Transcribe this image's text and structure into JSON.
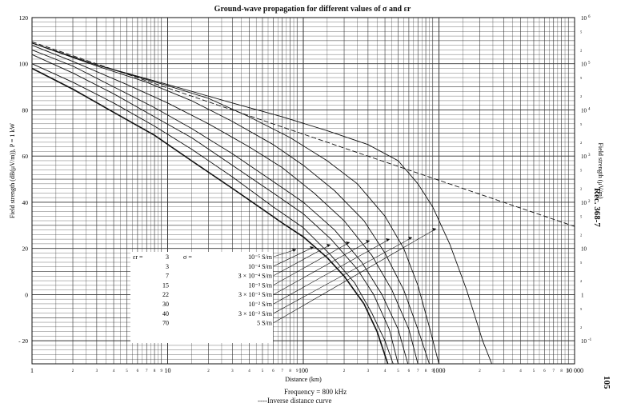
{
  "chart_data": {
    "type": "line",
    "title": "Ground-wave propagation for different values of σ and εr",
    "xlabel": "Distance (km)",
    "ylabel_left": "Field strength (dB(μV/m)), P = 1 kW",
    "ylabel_right": "Field strength (μV/m)",
    "x_scale": "log",
    "xlim": [
      1,
      10000
    ],
    "ylim": [
      -30,
      120
    ],
    "x_ticks_major": [
      "1",
      "10",
      "100",
      "1000",
      "10 000"
    ],
    "x_ticks_minor": [
      "2",
      "3",
      "4",
      "5",
      "6",
      "7",
      "8",
      "9"
    ],
    "y_ticks_left": [
      "120",
      "100",
      "80",
      "60",
      "40",
      "20",
      "0",
      "- 20"
    ],
    "y_ticks_right": [
      {
        "exp": "6"
      },
      {
        "exp": "5"
      },
      {
        "exp": "4"
      },
      {
        "exp": "3"
      },
      {
        "exp": "2"
      },
      {
        "label": "10"
      },
      {
        "label": "1"
      },
      {
        "exp": "-1"
      }
    ],
    "grid": true,
    "table_eps": [
      "3",
      "3",
      "7",
      "15",
      "22",
      "30",
      "40",
      "70"
    ],
    "table_sigma": [
      "10⁻⁵ S/m",
      "10⁻⁴ S/m",
      "3 × 10⁻⁴ S/m",
      "10⁻³ S/m",
      "3 × 10⁻³ S/m",
      "10⁻² S/m",
      "3 × 10⁻² S/m",
      "5    S/m"
    ],
    "series": [
      {
        "name": "εr = 3, σ = 10⁻⁵ S/m",
        "points": [
          [
            1,
            109
          ],
          [
            3,
            99.5
          ],
          [
            10,
            91
          ],
          [
            30,
            83
          ],
          [
            70,
            77
          ],
          [
            150,
            71
          ],
          [
            300,
            65
          ],
          [
            500,
            58
          ],
          [
            700,
            48
          ],
          [
            900,
            38
          ],
          [
            1200,
            22
          ],
          [
            1600,
            2
          ],
          [
            2100,
            -20
          ],
          [
            2450,
            -30
          ]
        ]
      },
      {
        "name": "εr = 3, σ = 10⁻⁴ S/m",
        "points": [
          [
            1,
            109
          ],
          [
            3,
            99.5
          ],
          [
            10,
            90.5
          ],
          [
            20,
            85
          ],
          [
            40,
            77
          ],
          [
            80,
            68
          ],
          [
            150,
            58
          ],
          [
            250,
            48
          ],
          [
            400,
            34
          ],
          [
            550,
            20
          ],
          [
            700,
            4
          ],
          [
            850,
            -14
          ],
          [
            1000,
            -30
          ]
        ]
      },
      {
        "name": "εr = 7, σ = 3 × 10⁻⁴ S/m",
        "points": [
          [
            1,
            109
          ],
          [
            3,
            99
          ],
          [
            7,
            92
          ],
          [
            15,
            84
          ],
          [
            30,
            75
          ],
          [
            60,
            65
          ],
          [
            100,
            56
          ],
          [
            170,
            45
          ],
          [
            280,
            32
          ],
          [
            400,
            18
          ],
          [
            550,
            2
          ],
          [
            700,
            -15
          ],
          [
            850,
            -30
          ]
        ]
      },
      {
        "name": "εr = 15, σ = 10⁻³ S/m",
        "points": [
          [
            1,
            108
          ],
          [
            2,
            101
          ],
          [
            5,
            91
          ],
          [
            10,
            83
          ],
          [
            20,
            74
          ],
          [
            40,
            64
          ],
          [
            70,
            55
          ],
          [
            120,
            44
          ],
          [
            200,
            32
          ],
          [
            320,
            17
          ],
          [
            450,
            2
          ],
          [
            600,
            -15
          ],
          [
            700,
            -30
          ]
        ]
      },
      {
        "name": "εr = 22, σ = 3 × 10⁻³ S/m",
        "points": [
          [
            1,
            106
          ],
          [
            2,
            99
          ],
          [
            4,
            90
          ],
          [
            8,
            81
          ],
          [
            15,
            72
          ],
          [
            30,
            61
          ],
          [
            60,
            49
          ],
          [
            100,
            40
          ],
          [
            170,
            28
          ],
          [
            270,
            14
          ],
          [
            380,
            0
          ],
          [
            500,
            -15
          ],
          [
            590,
            -30
          ]
        ]
      },
      {
        "name": "εr = 30, σ = 10⁻² S/m",
        "points": [
          [
            1,
            104
          ],
          [
            2,
            96
          ],
          [
            4,
            87
          ],
          [
            8,
            77
          ],
          [
            15,
            68
          ],
          [
            30,
            56
          ],
          [
            60,
            44
          ],
          [
            100,
            35
          ],
          [
            160,
            24
          ],
          [
            250,
            11
          ],
          [
            330,
            0
          ],
          [
            430,
            -15
          ],
          [
            500,
            -30
          ]
        ]
      },
      {
        "name": "εr = 40, σ = 3 × 10⁻² S/m",
        "points": [
          [
            1,
            100
          ],
          [
            2,
            92
          ],
          [
            4,
            83
          ],
          [
            8,
            73
          ],
          [
            15,
            63
          ],
          [
            30,
            51
          ],
          [
            60,
            38
          ],
          [
            100,
            29
          ],
          [
            160,
            17
          ],
          [
            240,
            5
          ],
          [
            320,
            -8
          ],
          [
            400,
            -20
          ],
          [
            460,
            -30
          ]
        ]
      },
      {
        "name": "εr = 70, σ = 5 S/m",
        "points": [
          [
            1,
            98
          ],
          [
            2,
            89
          ],
          [
            4,
            79
          ],
          [
            8,
            69
          ],
          [
            15,
            58
          ],
          [
            30,
            46
          ],
          [
            50,
            37
          ],
          [
            70,
            31
          ],
          [
            100,
            25
          ],
          [
            150,
            16
          ],
          [
            200,
            8
          ],
          [
            280,
            -4
          ],
          [
            350,
            -16
          ],
          [
            420,
            -30
          ]
        ]
      },
      {
        "name": "Inverse distance curve",
        "dashed": true,
        "points": [
          [
            1,
            109.5
          ],
          [
            10000,
            29.5
          ]
        ]
      }
    ]
  },
  "footer": {
    "frequency": "Frequency = 800 kHz",
    "inverse": "----Inverse distance curve"
  },
  "side": {
    "rec": "Rec.  368-7",
    "page": "105"
  }
}
